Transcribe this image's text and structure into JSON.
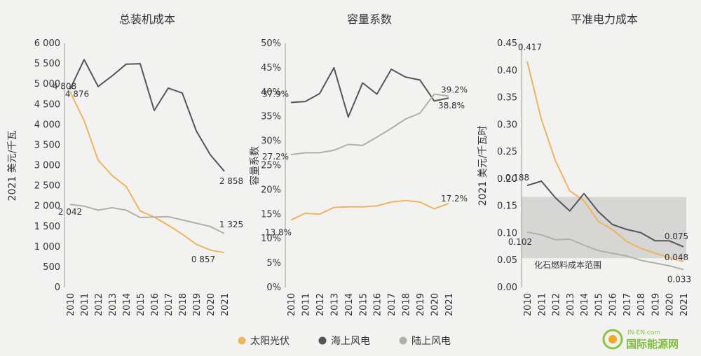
{
  "legend": [
    {
      "name": "太阳光伏",
      "color": "#f0b45a"
    },
    {
      "name": "海上风电",
      "color": "#555555"
    },
    {
      "name": "陆上风电",
      "color": "#b0b0a8"
    }
  ],
  "watermark": {
    "brand": "IN-EN.com",
    "text": "国际能源网"
  },
  "chart_data": [
    {
      "type": "line",
      "title": "总装机成本",
      "ylabel": "2021 美元/千瓦",
      "xlabel": "",
      "categories": [
        "2010",
        "2011",
        "2012",
        "2013",
        "2014",
        "2015",
        "2016",
        "2017",
        "2018",
        "2019",
        "2020",
        "2021"
      ],
      "ylim": [
        0,
        6000
      ],
      "yticks": [
        0,
        500,
        1000,
        1500,
        2000,
        2500,
        3000,
        3500,
        4000,
        4500,
        5000,
        5500,
        6000
      ],
      "ytick_labels": [
        "0",
        "500",
        "1 000",
        "1 500",
        "2 000",
        "2 500",
        "3 000",
        "3 500",
        "4 000",
        "4 500",
        "5 000",
        "5 500",
        "6 000"
      ],
      "grid": false,
      "series": [
        {
          "name": "太阳光伏",
          "color": "#f0b45a",
          "values": [
            4808,
            4100,
            3130,
            2750,
            2480,
            1880,
            1730,
            1530,
            1310,
            1060,
            920,
            857
          ]
        },
        {
          "name": "海上风电",
          "color": "#555555",
          "values": [
            4876,
            5600,
            4940,
            5200,
            5490,
            5500,
            4350,
            4900,
            4780,
            3850,
            3260,
            2858
          ]
        },
        {
          "name": "陆上风电",
          "color": "#b0b0a8",
          "values": [
            2042,
            2000,
            1900,
            1960,
            1900,
            1720,
            1730,
            1740,
            1660,
            1580,
            1500,
            1325
          ]
        }
      ],
      "annotations": [
        {
          "text": "4 808",
          "series": 0,
          "index": 0
        },
        {
          "text": "4 876",
          "series": 1,
          "index": 0
        },
        {
          "text": "2 042",
          "series": 2,
          "index": 0
        },
        {
          "text": "2 858",
          "series": 1,
          "index": 11
        },
        {
          "text": "1 325",
          "series": 2,
          "index": 11
        },
        {
          "text": "0 857",
          "series": 0,
          "index": 11
        }
      ]
    },
    {
      "type": "line",
      "title": "容量系数",
      "ylabel": "容量系数",
      "xlabel": "",
      "categories": [
        "2010",
        "2011",
        "2012",
        "2013",
        "2014",
        "2015",
        "2016",
        "2017",
        "2018",
        "2019",
        "2020",
        "2021"
      ],
      "ylim": [
        0,
        50
      ],
      "yticks": [
        0,
        5,
        10,
        15,
        20,
        25,
        30,
        35,
        40,
        45,
        50
      ],
      "ytick_labels": [
        "0%",
        "5%",
        "10%",
        "15%",
        "20%",
        "25%",
        "30%",
        "35%",
        "40%",
        "45%",
        "50%"
      ],
      "grid": false,
      "series": [
        {
          "name": "太阳光伏",
          "color": "#f0b45a",
          "values": [
            13.8,
            15.2,
            15.0,
            16.4,
            16.5,
            16.5,
            16.7,
            17.5,
            17.8,
            17.5,
            16.1,
            17.2
          ]
        },
        {
          "name": "海上风电",
          "color": "#555555",
          "values": [
            37.9,
            38.1,
            39.7,
            45.0,
            34.9,
            41.9,
            39.6,
            44.7,
            43.1,
            42.5,
            38.2,
            38.8
          ]
        },
        {
          "name": "陆上风电",
          "color": "#b0b0a8",
          "values": [
            27.2,
            27.6,
            27.6,
            28.1,
            29.3,
            29.1,
            30.8,
            32.6,
            34.5,
            35.7,
            39.6,
            39.2
          ]
        }
      ],
      "annotations": [
        {
          "text": "37.9%",
          "series": 1,
          "index": 0
        },
        {
          "text": "27.2%",
          "series": 2,
          "index": 0
        },
        {
          "text": "13.8%",
          "series": 0,
          "index": 0
        },
        {
          "text": "39.2%",
          "series": 2,
          "index": 11
        },
        {
          "text": "38.8%",
          "series": 1,
          "index": 11
        },
        {
          "text": "17.2%",
          "series": 0,
          "index": 11
        }
      ]
    },
    {
      "type": "line",
      "title": "平准电力成本",
      "ylabel": "2021 美元/千瓦时",
      "xlabel": "",
      "categories": [
        "2010",
        "2011",
        "2012",
        "2013",
        "2014",
        "2015",
        "2016",
        "2017",
        "2018",
        "2019",
        "2020",
        "2021"
      ],
      "ylim": [
        0,
        0.45
      ],
      "yticks": [
        0,
        0.05,
        0.1,
        0.15,
        0.2,
        0.25,
        0.3,
        0.35,
        0.4,
        0.45
      ],
      "ytick_labels": [
        "0.00",
        "0.05",
        "0.10",
        "0.15",
        "0.20",
        "0.25",
        "0.30",
        "0.35",
        "0.40",
        "0.45"
      ],
      "grid": false,
      "band": {
        "label": "化石燃料成本范围",
        "from": 0.054,
        "to": 0.167
      },
      "series": [
        {
          "name": "太阳光伏",
          "color": "#f0b45a",
          "values": [
            0.417,
            0.31,
            0.233,
            0.178,
            0.16,
            0.122,
            0.107,
            0.085,
            0.072,
            0.063,
            0.055,
            0.048
          ]
        },
        {
          "name": "海上风电",
          "color": "#555555",
          "values": [
            0.188,
            0.196,
            0.165,
            0.141,
            0.173,
            0.14,
            0.116,
            0.107,
            0.101,
            0.086,
            0.086,
            0.075
          ]
        },
        {
          "name": "陆上风电",
          "color": "#b0b0a8",
          "values": [
            0.102,
            0.097,
            0.088,
            0.089,
            0.078,
            0.068,
            0.063,
            0.058,
            0.05,
            0.045,
            0.04,
            0.033
          ]
        }
      ],
      "annotations": [
        {
          "text": "0.417",
          "series": 0,
          "index": 0
        },
        {
          "text": "0.188",
          "series": 1,
          "index": 0
        },
        {
          "text": "0.102",
          "series": 2,
          "index": 0
        },
        {
          "text": "0.075",
          "series": 1,
          "index": 11
        },
        {
          "text": "0.048",
          "series": 0,
          "index": 11
        },
        {
          "text": "0.033",
          "series": 2,
          "index": 11
        }
      ]
    }
  ]
}
